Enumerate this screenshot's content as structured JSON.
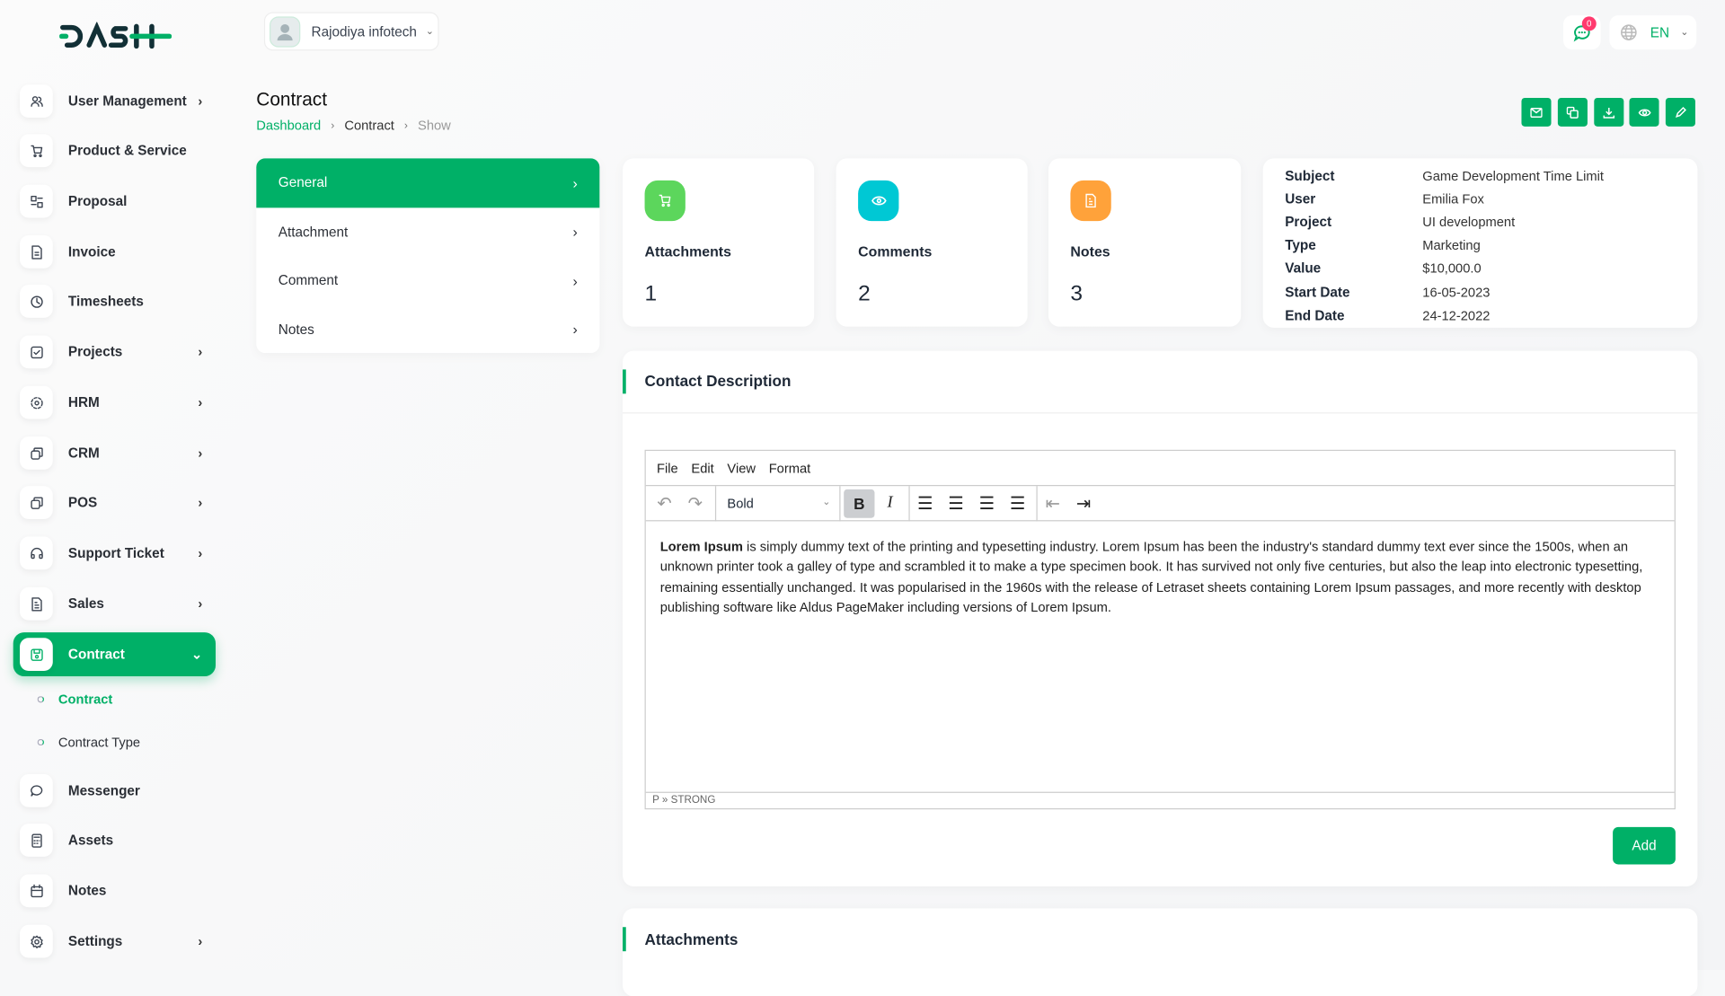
{
  "brand": {
    "logo_text": "DASH"
  },
  "header": {
    "company": "Rajodiya infotech",
    "notification_count": "0",
    "language": "EN"
  },
  "sidebar": {
    "items": [
      {
        "label": "User Management",
        "icon": "users-icon",
        "has_children": true
      },
      {
        "label": "Product & Service",
        "icon": "cart-icon",
        "has_children": false
      },
      {
        "label": "Proposal",
        "icon": "proposal-icon",
        "has_children": false
      },
      {
        "label": "Invoice",
        "icon": "invoice-icon",
        "has_children": false
      },
      {
        "label": "Timesheets",
        "icon": "clock-icon",
        "has_children": false
      },
      {
        "label": "Projects",
        "icon": "checkbox-icon",
        "has_children": true
      },
      {
        "label": "HRM",
        "icon": "hrm-icon",
        "has_children": true
      },
      {
        "label": "CRM",
        "icon": "crm-icon",
        "has_children": true
      },
      {
        "label": "POS",
        "icon": "pos-icon",
        "has_children": true
      },
      {
        "label": "Support Ticket",
        "icon": "headset-icon",
        "has_children": true
      },
      {
        "label": "Sales",
        "icon": "file-icon",
        "has_children": true
      },
      {
        "label": "Contract",
        "icon": "save-icon",
        "has_children": true,
        "active": true
      }
    ],
    "sub_items": [
      {
        "label": "Contract",
        "active": true
      },
      {
        "label": "Contract Type"
      }
    ],
    "items_after": [
      {
        "label": "Messenger",
        "icon": "chat-icon",
        "has_children": false
      },
      {
        "label": "Assets",
        "icon": "calculator-icon",
        "has_children": false
      },
      {
        "label": "Notes",
        "icon": "calendar-icon",
        "has_children": false
      },
      {
        "label": "Settings",
        "icon": "gear-icon",
        "has_children": true
      }
    ]
  },
  "page": {
    "title": "Contract",
    "breadcrumb": [
      "Dashboard",
      "Contract",
      "Show"
    ]
  },
  "actions": [
    "mail-icon",
    "copy-icon",
    "download-icon",
    "eye-icon",
    "pencil-icon"
  ],
  "side_menu": [
    "General",
    "Attachment",
    "Comment",
    "Notes"
  ],
  "stats": [
    {
      "label": "Attachments",
      "value": "1",
      "color": "#5cd65c",
      "icon": "cart-icon"
    },
    {
      "label": "Comments",
      "value": "2",
      "color": "#00c8d4",
      "icon": "eye-icon"
    },
    {
      "label": "Notes",
      "value": "3",
      "color": "#ffa23a",
      "icon": "note-icon"
    }
  ],
  "info": [
    {
      "k": "Subject",
      "v": "Game Development Time Limit"
    },
    {
      "k": "User",
      "v": "Emilia Fox"
    },
    {
      "k": "Project",
      "v": "UI development"
    },
    {
      "k": "Type",
      "v": "Marketing"
    },
    {
      "k": "Value",
      "v": "$10,000.0"
    },
    {
      "k": "Start Date",
      "v": "16-05-2023"
    },
    {
      "k": "End Date",
      "v": "24-12-2022"
    }
  ],
  "description": {
    "title": "Contact Description",
    "menubar": [
      "File",
      "Edit",
      "View",
      "Format"
    ],
    "format_select": "Bold",
    "content_bold": "Lorem Ipsum",
    "content_rest": " is simply dummy text of the printing and typesetting industry. Lorem Ipsum has been the industry's standard dummy text ever since the 1500s, when an unknown printer took a galley of type and scrambled it to make a type specimen book. It has survived not only five centuries, but also the leap into electronic typesetting, remaining essentially unchanged. It was popularised in the 1960s with the release of Letraset sheets containing Lorem Ipsum passages, and more recently with desktop publishing software like Aldus PageMaker including versions of Lorem Ipsum.",
    "status_path": "P » STRONG",
    "add_label": "Add"
  },
  "attachments": {
    "title": "Attachments"
  },
  "colors": {
    "accent": "#00b067"
  }
}
